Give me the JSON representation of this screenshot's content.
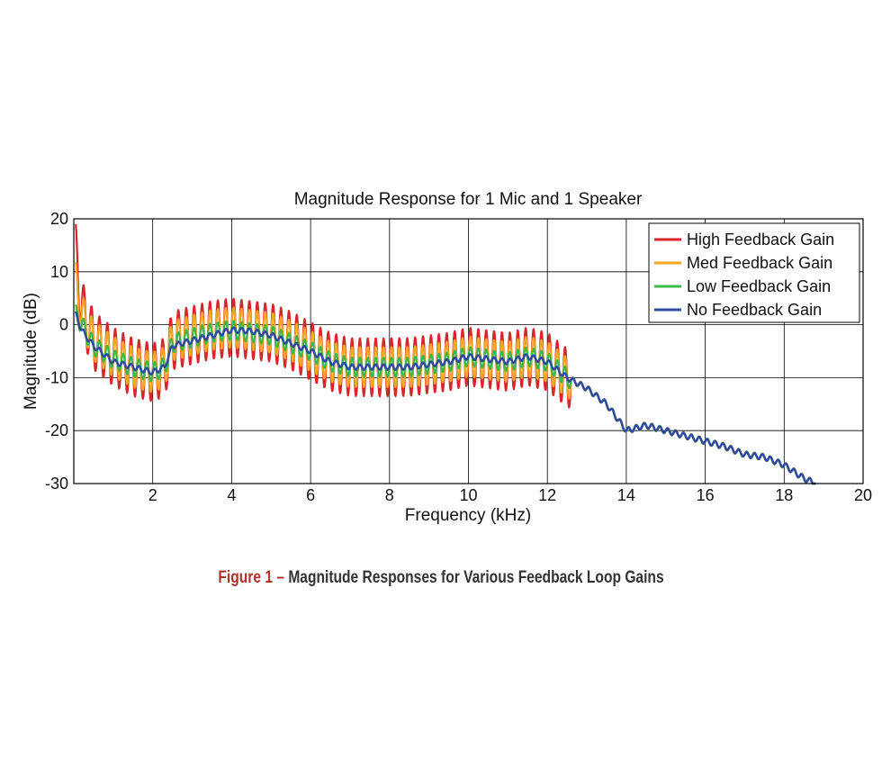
{
  "chart_data": {
    "type": "line",
    "title": "Magnitude Response for 1 Mic and 1 Speaker",
    "xlabel": "Frequency (kHz)",
    "ylabel": "Magnitude (dB)",
    "xlim": [
      0,
      20
    ],
    "ylim": [
      -30,
      20
    ],
    "xticks": [
      "2",
      "4",
      "6",
      "8",
      "10",
      "12",
      "14",
      "16",
      "18",
      "20"
    ],
    "yticks": [
      "20",
      "10",
      "0",
      "-10",
      "-20",
      "-30"
    ],
    "grid": true,
    "legend_position": "top-right",
    "x": [
      0.05,
      0.2,
      0.5,
      1.0,
      1.5,
      2.0,
      2.3,
      2.5,
      3.0,
      3.5,
      4.0,
      4.5,
      5.0,
      5.5,
      6.0,
      6.5,
      7.0,
      7.5,
      8.0,
      8.5,
      9.0,
      9.5,
      10.0,
      10.5,
      11.0,
      11.5,
      12.0,
      12.5,
      13.0,
      13.5,
      14.0,
      14.5,
      15.0,
      15.5,
      16.0,
      16.5,
      17.0,
      17.5,
      18.0,
      18.5,
      18.8
    ],
    "series": [
      {
        "name": "High Feedback Gain",
        "color": "#d9262b",
        "ripple": 5.5,
        "values": [
          13.5,
          3,
          -3,
          -6,
          -8,
          -9,
          -8,
          -3,
          -2,
          -1,
          -0.5,
          -1,
          -1.5,
          -3,
          -5,
          -7,
          -8,
          -8,
          -8,
          -8,
          -7.5,
          -7,
          -6,
          -6.5,
          -7,
          -6,
          -7,
          -10,
          -12,
          -15,
          -20,
          -19,
          -20,
          -21,
          -22,
          -23,
          -24.5,
          -25,
          -26.5,
          -29,
          -30
        ]
      },
      {
        "name": "Med Feedback Gain",
        "color": "#f5a623",
        "ripple": 3.8,
        "values": [
          8,
          2,
          -3,
          -6,
          -8,
          -9,
          -8,
          -3,
          -2,
          -1,
          -0.5,
          -1,
          -1.5,
          -3,
          -5,
          -7,
          -8,
          -8,
          -8,
          -8,
          -7.5,
          -7,
          -6,
          -6.5,
          -7,
          -6,
          -7,
          -10,
          -12,
          -15,
          -20,
          -19,
          -20,
          -21,
          -22,
          -23,
          -24.5,
          -25,
          -26.5,
          -29,
          -30
        ]
      },
      {
        "name": "Low Feedback Gain",
        "color": "#3db848",
        "ripple": 1.8,
        "values": [
          2,
          0,
          -4,
          -6.5,
          -8,
          -9,
          -8,
          -3.5,
          -2.5,
          -1.5,
          -1,
          -1.5,
          -2,
          -3.5,
          -5,
          -7,
          -8,
          -8,
          -8,
          -8,
          -7.5,
          -7,
          -6,
          -6.5,
          -7,
          -6,
          -7,
          -10,
          -12,
          -15,
          -20,
          -19,
          -20,
          -21,
          -22,
          -23,
          -24.5,
          -25,
          -26.5,
          -29,
          -30
        ]
      },
      {
        "name": "No Feedback Gain",
        "color": "#2f4b9e",
        "ripple": 0.5,
        "values": [
          2,
          -1,
          -4,
          -7,
          -8,
          -9,
          -8,
          -4,
          -3,
          -2,
          -1,
          -1.2,
          -2,
          -3.5,
          -5,
          -7,
          -8,
          -8,
          -8,
          -8,
          -7.5,
          -7,
          -6,
          -6.5,
          -7,
          -6,
          -7,
          -10,
          -12,
          -15,
          -20,
          -19,
          -20,
          -21,
          -22,
          -23,
          -24.5,
          -25,
          -26.5,
          -29,
          -30
        ]
      }
    ]
  },
  "caption": {
    "figure_label": "Figure 1",
    "separator": "–",
    "text": "Magnitude Responses for Various Feedback Loop Gains"
  }
}
